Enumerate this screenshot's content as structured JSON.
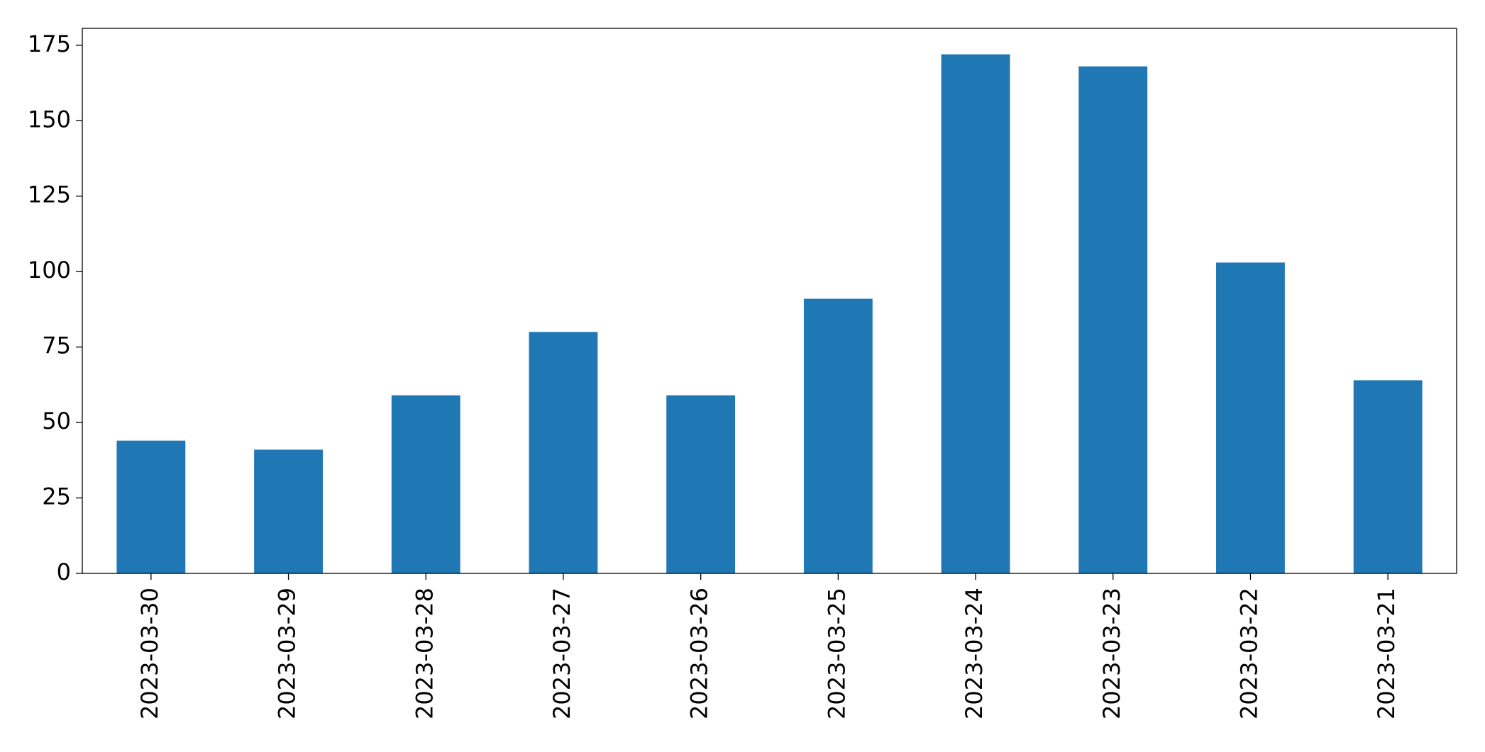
{
  "chart_data": {
    "type": "bar",
    "categories": [
      "2023-03-30",
      "2023-03-29",
      "2023-03-28",
      "2023-03-27",
      "2023-03-26",
      "2023-03-25",
      "2023-03-24",
      "2023-03-23",
      "2023-03-22",
      "2023-03-21"
    ],
    "values": [
      44,
      41,
      59,
      80,
      59,
      91,
      172,
      168,
      103,
      64
    ],
    "color": "#1f77b4",
    "ylim": [
      0,
      180.6
    ],
    "yticks": [
      0,
      25,
      50,
      75,
      100,
      125,
      150,
      175
    ],
    "grid": false
  }
}
